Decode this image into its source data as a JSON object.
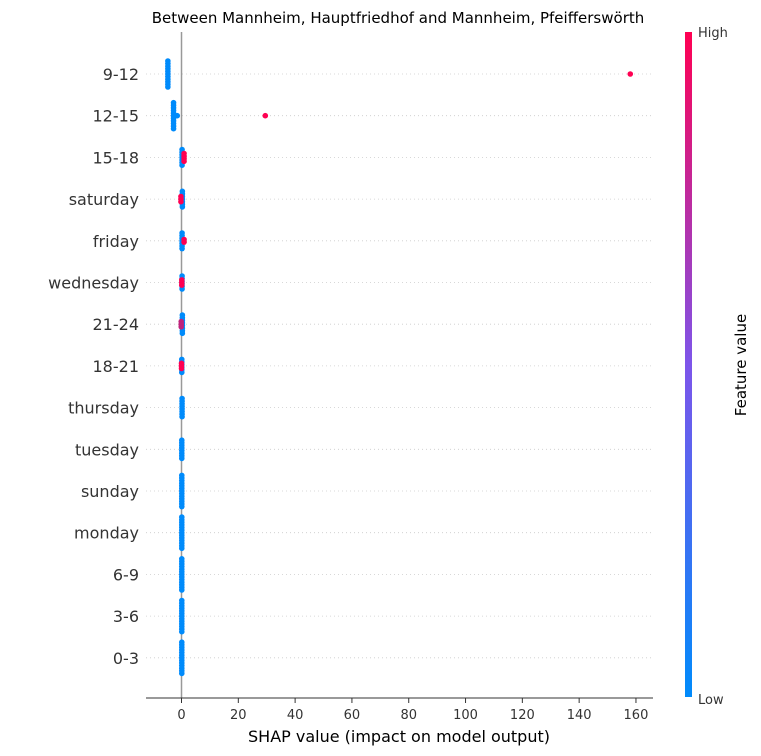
{
  "chart_data": {
    "type": "scatter",
    "subtype": "shap-beeswarm",
    "title": "Between Mannheim, Hauptfriedhof and Mannheim, Pfeifferswörth",
    "xlabel": "SHAP value (impact on model output)",
    "xlim": [
      -12.5,
      166
    ],
    "xticks": [
      0,
      20,
      40,
      60,
      80,
      100,
      120,
      140,
      160
    ],
    "colorbar": {
      "label": "Feature value",
      "high": "High",
      "low": "Low",
      "low_color": "#008bfb",
      "high_color": "#ff0052"
    },
    "zero_line_color": "#999999",
    "features": [
      {
        "name": "9-12",
        "points": [
          {
            "x": -4.8,
            "v": 0,
            "n": 11
          },
          {
            "x": 158,
            "v": 1,
            "n": 1
          }
        ]
      },
      {
        "name": "12-15",
        "points": [
          {
            "x": -2.8,
            "v": 0,
            "n": 11
          },
          {
            "x": -1.5,
            "v": 0,
            "n": 1
          },
          {
            "x": 29.5,
            "v": 1,
            "n": 1
          }
        ]
      },
      {
        "name": "15-18",
        "points": [
          {
            "x": 0.2,
            "v": 0,
            "n": 7
          },
          {
            "x": 0.9,
            "v": 1,
            "n": 4
          }
        ]
      },
      {
        "name": "saturday",
        "points": [
          {
            "x": 0.3,
            "v": 0,
            "n": 7
          },
          {
            "x": -0.2,
            "v": 1,
            "n": 3
          }
        ]
      },
      {
        "name": "friday",
        "points": [
          {
            "x": 0.2,
            "v": 0,
            "n": 7
          },
          {
            "x": 0.9,
            "v": 1,
            "n": 2
          }
        ]
      },
      {
        "name": "wednesday",
        "points": [
          {
            "x": 0.2,
            "v": 0,
            "n": 6
          },
          {
            "x": 0.1,
            "v": 1,
            "n": 3
          }
        ]
      },
      {
        "name": "21-24",
        "points": [
          {
            "x": 0.3,
            "v": 0,
            "n": 8
          },
          {
            "x": -0.1,
            "v": 0.75,
            "n": 3
          }
        ]
      },
      {
        "name": "18-21",
        "points": [
          {
            "x": 0.1,
            "v": 0,
            "n": 6
          },
          {
            "x": 0.0,
            "v": 1,
            "n": 3
          }
        ]
      },
      {
        "name": "thursday",
        "points": [
          {
            "x": 0.2,
            "v": 0,
            "n": 8
          }
        ]
      },
      {
        "name": "tuesday",
        "points": [
          {
            "x": 0.1,
            "v": 0,
            "n": 8
          }
        ]
      },
      {
        "name": "sunday",
        "points": [
          {
            "x": 0.1,
            "v": 0,
            "n": 13
          }
        ]
      },
      {
        "name": "monday",
        "points": [
          {
            "x": 0.1,
            "v": 0,
            "n": 13
          }
        ]
      },
      {
        "name": "6-9",
        "points": [
          {
            "x": 0.1,
            "v": 0,
            "n": 13
          }
        ]
      },
      {
        "name": "3-6",
        "points": [
          {
            "x": 0.1,
            "v": 0,
            "n": 13
          }
        ]
      },
      {
        "name": "0-3",
        "points": [
          {
            "x": 0.1,
            "v": 0,
            "n": 13
          }
        ]
      }
    ]
  }
}
